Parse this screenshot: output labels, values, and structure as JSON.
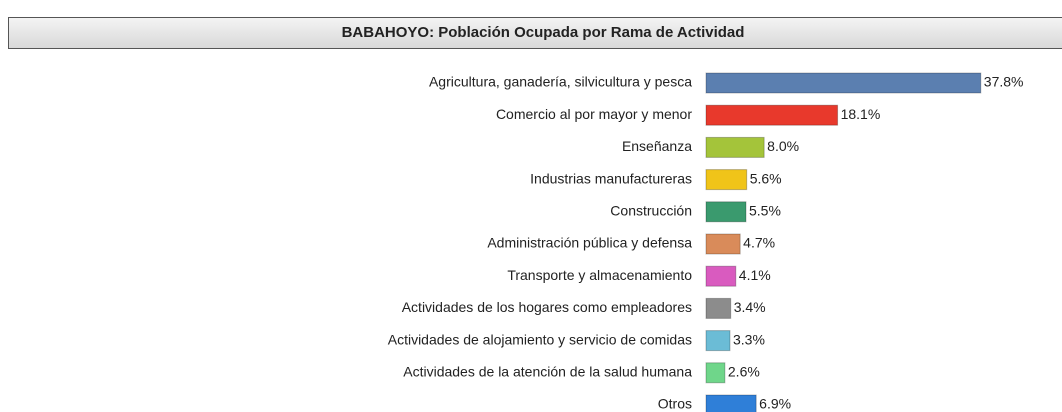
{
  "chart_data": {
    "type": "hbar",
    "title": "BABAHOYO: Población Ocupada por Rama de Actividad",
    "categories": [
      "Agricultura, ganadería, silvicultura y pesca",
      "Comercio al por mayor y menor",
      "Enseñanza",
      "Industrias manufactureras",
      "Construcción",
      "Administración pública y defensa",
      "Transporte y almacenamiento",
      "Actividades de los hogares como empleadores",
      "Actividades de alojamiento y servicio de comidas",
      "Actividades de la atención de la salud humana",
      "Otros"
    ],
    "values": [
      37.8,
      18.1,
      8.0,
      5.6,
      5.5,
      4.7,
      4.1,
      3.4,
      3.3,
      2.6,
      6.9
    ],
    "value_labels": [
      "37.8%",
      "18.1%",
      "8.0%",
      "5.6%",
      "5.5%",
      "4.7%",
      "4.1%",
      "3.4%",
      "3.3%",
      "2.6%",
      "6.9%"
    ],
    "colors": [
      "#5b7fb0",
      "#e8392c",
      "#a4c43a",
      "#f0c419",
      "#3a9a6e",
      "#d98b5a",
      "#d95bbf",
      "#8c8c8c",
      "#6bbcd6",
      "#6fd68a",
      "#2f7fd8"
    ]
  }
}
